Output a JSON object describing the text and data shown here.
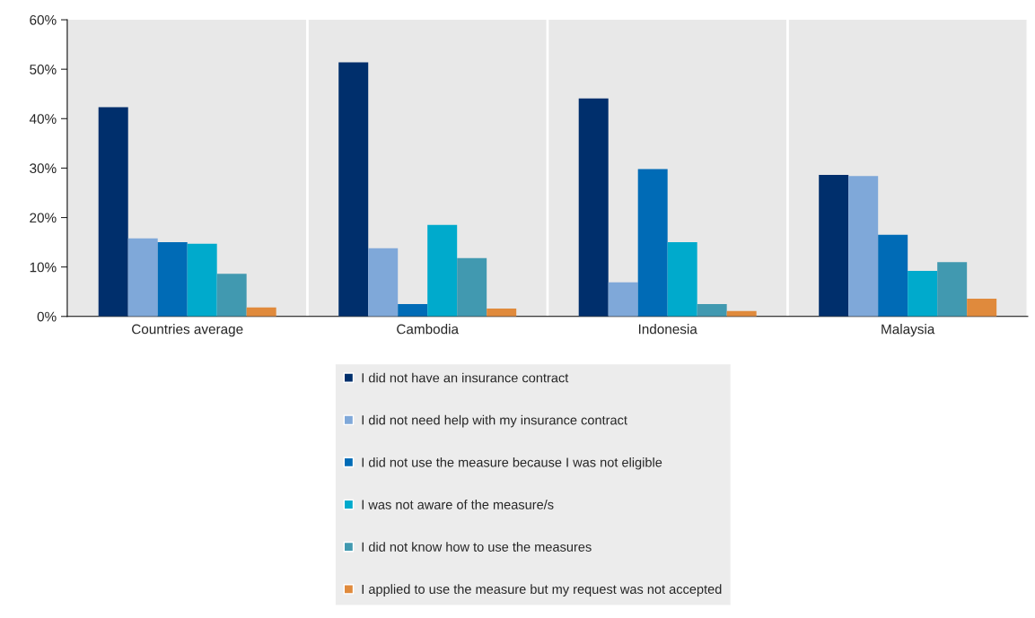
{
  "chart_data": {
    "type": "bar",
    "categories": [
      "Countries average",
      "Cambodia",
      "Indonesia",
      "Malaysia"
    ],
    "series": [
      {
        "name": "I did not have an insurance contract",
        "color": "#002f6c",
        "values": [
          42.3,
          51.4,
          44.1,
          28.6
        ]
      },
      {
        "name": "I did not need help with my insurance contract",
        "color": "#7fa8d9",
        "values": [
          15.8,
          13.8,
          6.9,
          28.4
        ]
      },
      {
        "name": "I did not use the measure because I was not eligible",
        "color": "#006bb6",
        "values": [
          15.0,
          2.5,
          29.8,
          16.5
        ]
      },
      {
        "name": "I was not aware of the measure/s",
        "color": "#00aacc",
        "values": [
          14.7,
          18.5,
          15.0,
          9.2
        ]
      },
      {
        "name": "I did not know how to use the measures",
        "color": "#4199b0",
        "values": [
          8.6,
          11.8,
          2.5,
          11.0
        ]
      },
      {
        "name": "I applied to use the measure but my request was not accepted",
        "color": "#e08a3c",
        "values": [
          1.8,
          1.6,
          1.1,
          3.6
        ]
      }
    ],
    "ylim": [
      0,
      60
    ],
    "yticks": [
      {
        "value": 0,
        "label": "0%"
      },
      {
        "value": 10,
        "label": "10%"
      },
      {
        "value": 20,
        "label": "20%"
      },
      {
        "value": 30,
        "label": "30%"
      },
      {
        "value": 40,
        "label": "40%"
      },
      {
        "value": 50,
        "label": "50%"
      },
      {
        "value": 60,
        "label": "60%"
      }
    ],
    "grid": "x",
    "legend": "bottom"
  }
}
